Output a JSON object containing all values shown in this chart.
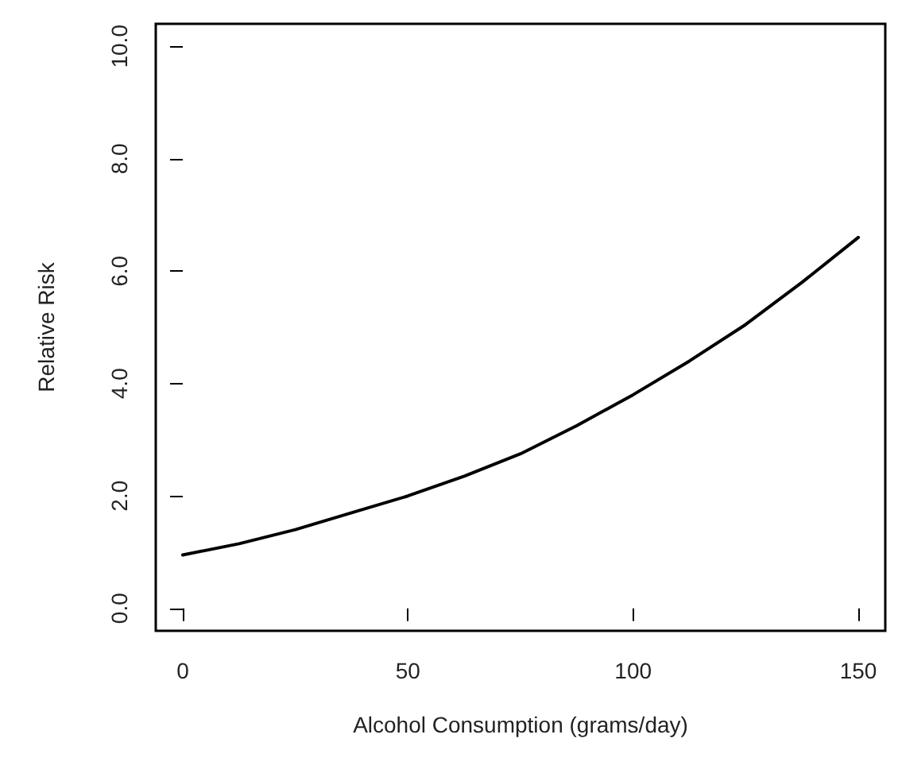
{
  "chart_data": {
    "type": "line",
    "xlabel": "Alcohol Consumption (grams/day)",
    "ylabel": "Relative Risk",
    "series": [
      {
        "color": "#000000",
        "x": [
          0,
          12.5,
          25,
          37.5,
          50,
          62.5,
          75,
          87.5,
          100,
          112.5,
          125,
          137.5,
          150
        ],
        "values": [
          0.95,
          1.15,
          1.4,
          1.7,
          2.0,
          2.35,
          2.75,
          3.25,
          3.8,
          4.4,
          5.05,
          5.8,
          6.6
        ]
      }
    ],
    "xlim": [
      -6,
      156
    ],
    "ylim": [
      -0.4,
      10.4
    ],
    "xticks": [
      0,
      50,
      100,
      150
    ],
    "yticks": [
      {
        "value": 0,
        "label": "0.0"
      },
      {
        "value": 2,
        "label": "2.0"
      },
      {
        "value": 4,
        "label": "4.0"
      },
      {
        "value": 6,
        "label": "6.0"
      },
      {
        "value": 8,
        "label": "8.0"
      },
      {
        "value": 10,
        "label": "10.0"
      }
    ],
    "grid": false,
    "marker": "none",
    "line_style": "solid"
  }
}
